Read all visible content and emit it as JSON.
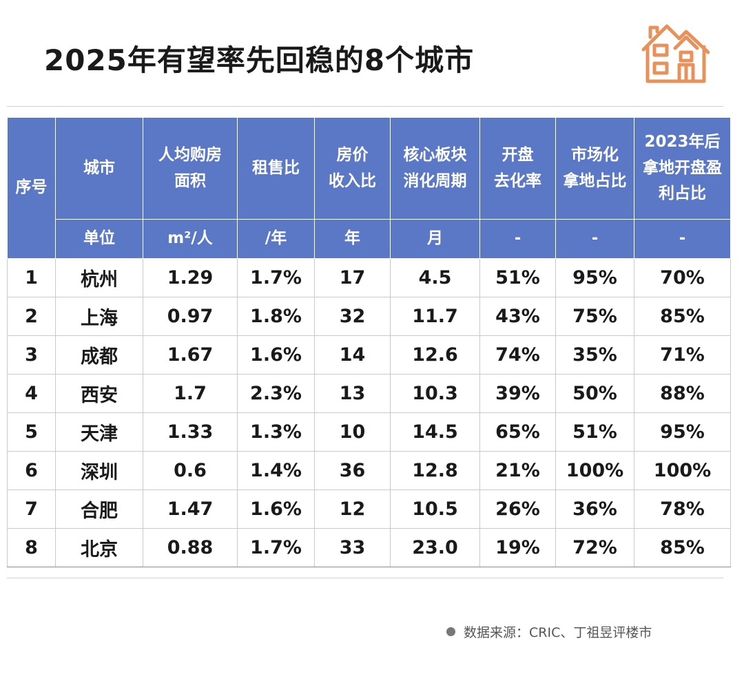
{
  "title": "2025年有望率先回稳的8个城市",
  "logo_icon": "house-icon",
  "accent_color": "#5b78c7",
  "logo_color": "#e8915a",
  "table": {
    "headers": [
      [
        "序号"
      ],
      [
        "城市"
      ],
      [
        "人均购房",
        "面积"
      ],
      [
        "租售比"
      ],
      [
        "房价",
        "收入比"
      ],
      [
        "核心板块",
        "消化周期"
      ],
      [
        "开盘",
        "去化率"
      ],
      [
        "市场化",
        "拿地占比"
      ],
      [
        "2023年后",
        "拿地开盘盈",
        "利占比"
      ]
    ],
    "unit_label": "单位",
    "units": [
      "m²/人",
      "/年",
      "年",
      "月",
      "-",
      "-",
      "-"
    ],
    "rows": [
      [
        "1",
        "杭州",
        "1.29",
        "1.7%",
        "17",
        "4.5",
        "51%",
        "95%",
        "70%"
      ],
      [
        "2",
        "上海",
        "0.97",
        "1.8%",
        "32",
        "11.7",
        "43%",
        "75%",
        "85%"
      ],
      [
        "3",
        "成都",
        "1.67",
        "1.6%",
        "14",
        "12.6",
        "74%",
        "35%",
        "71%"
      ],
      [
        "4",
        "西安",
        "1.7",
        "2.3%",
        "13",
        "10.3",
        "39%",
        "50%",
        "88%"
      ],
      [
        "5",
        "天津",
        "1.33",
        "1.3%",
        "10",
        "14.5",
        "65%",
        "51%",
        "95%"
      ],
      [
        "6",
        "深圳",
        "0.6",
        "1.4%",
        "36",
        "12.8",
        "21%",
        "100%",
        "100%"
      ],
      [
        "7",
        "合肥",
        "1.47",
        "1.6%",
        "12",
        "10.5",
        "26%",
        "36%",
        "78%"
      ],
      [
        "8",
        "北京",
        "0.88",
        "1.7%",
        "33",
        "23.0",
        "19%",
        "72%",
        "85%"
      ]
    ]
  },
  "source": "数据来源：CRIC、丁祖昱评楼市"
}
